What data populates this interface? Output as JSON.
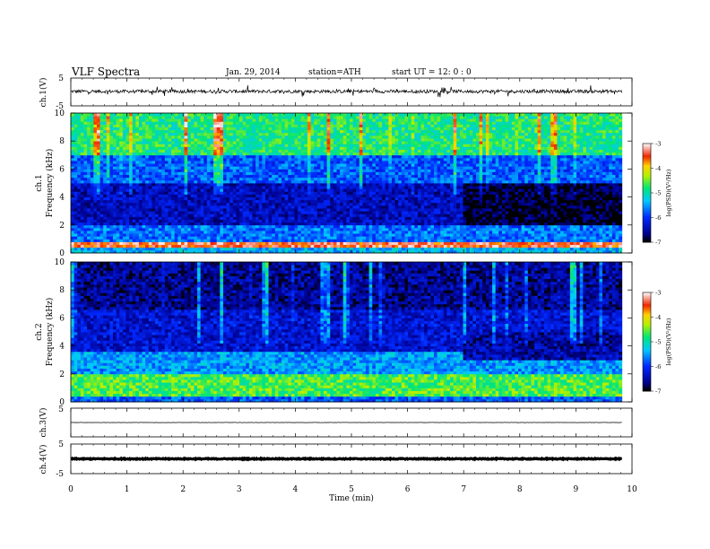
{
  "header": {
    "title": "VLF  Spectra",
    "date": "Jan. 29, 2014",
    "station": "station=ATH",
    "start": "start  UT =   12: 0  : 0"
  },
  "chart_data": [
    {
      "type": "line",
      "panel": "ch1-waveform",
      "ylabel": "ch.1(V)",
      "ylim": [
        -5,
        5
      ],
      "yticks": [
        "5",
        "-5"
      ],
      "xlim": [
        0,
        10
      ],
      "x_data_end": 9.82,
      "series": [
        {
          "baseline": 0.2,
          "noise_amplitude": 0.6,
          "color": "#000000"
        }
      ]
    },
    {
      "type": "heatmap",
      "panel": "ch1-spectrogram",
      "ylabel_top": "ch.1",
      "ylabel": "Frequency  (kHz)",
      "ylim": [
        0,
        10
      ],
      "yticks": [
        "0",
        "2",
        "4",
        "6",
        "8",
        "10"
      ],
      "xlim": [
        0,
        10
      ],
      "x_data_end": 9.82,
      "colorbar": {
        "label": "log(PSD)(V²/Hz)",
        "range": [
          -7,
          -3
        ],
        "ticks": [
          "-3",
          "-4",
          "-5",
          "-6",
          "-7"
        ]
      },
      "bands": [
        {
          "f_from": 0.0,
          "f_to": 0.3,
          "logpsd": -5.4
        },
        {
          "f_from": 0.3,
          "f_to": 0.8,
          "logpsd": -3.4
        },
        {
          "f_from": 0.8,
          "f_to": 2.0,
          "logpsd": -5.7
        },
        {
          "f_from": 2.0,
          "f_to": 5.0,
          "logpsd": -6.4
        },
        {
          "f_from": 5.0,
          "f_to": 7.0,
          "logpsd": -5.8
        },
        {
          "f_from": 7.0,
          "f_to": 10.0,
          "logpsd": -4.8
        }
      ],
      "quiet_period": {
        "t_from": 6.95,
        "t_to": 9.82,
        "f_from": 2.0,
        "f_to": 5.0,
        "logpsd": -6.9
      }
    },
    {
      "type": "heatmap",
      "panel": "ch2-spectrogram",
      "ylabel_top": "ch.2",
      "ylabel": "Frequency  (kHz)",
      "ylim": [
        0,
        10
      ],
      "yticks": [
        "0",
        "2",
        "4",
        "6",
        "8",
        "10"
      ],
      "xlim": [
        0,
        10
      ],
      "x_data_end": 9.82,
      "colorbar": {
        "label": "log(PSD)(V²/Hz)",
        "range": [
          -7,
          -3
        ],
        "ticks": [
          "-3",
          "-4",
          "-5",
          "-6",
          "-7"
        ]
      },
      "bands": [
        {
          "f_from": 0.0,
          "f_to": 0.3,
          "logpsd": -5.8
        },
        {
          "f_from": 0.3,
          "f_to": 2.0,
          "logpsd": -4.6
        },
        {
          "f_from": 2.0,
          "f_to": 3.5,
          "logpsd": -5.5
        },
        {
          "f_from": 3.5,
          "f_to": 6.5,
          "logpsd": -6.3
        },
        {
          "f_from": 6.5,
          "f_to": 10.0,
          "logpsd": -6.6
        }
      ],
      "quiet_period": {
        "t_from": 6.95,
        "t_to": 9.82,
        "f_from": 3.0,
        "f_to": 5.0,
        "logpsd": -6.5
      }
    },
    {
      "type": "line",
      "panel": "ch3-waveform",
      "ylabel": "ch.3(V)",
      "ylim": [
        -5,
        5
      ],
      "yticks": [
        "5"
      ],
      "xlim": [
        0,
        10
      ],
      "x_data_end": 9.82,
      "series": [
        {
          "baseline": 0.0,
          "noise_amplitude": 0.05,
          "color": "#000000"
        }
      ]
    },
    {
      "type": "line",
      "panel": "ch4-waveform",
      "ylabel": "ch.4(V)",
      "ylim": [
        -5,
        5
      ],
      "yticks": [
        "5",
        "-5"
      ],
      "xlim": [
        0,
        10
      ],
      "x_data_end": 9.82,
      "series": [
        {
          "baseline": 0.0,
          "noise_amplitude": 0.15,
          "color": "#000000"
        }
      ]
    }
  ],
  "x_axis": {
    "label": "Time  (min)",
    "ticks": [
      "0",
      "1",
      "2",
      "3",
      "4",
      "5",
      "6",
      "7",
      "8",
      "9",
      "10"
    ]
  }
}
